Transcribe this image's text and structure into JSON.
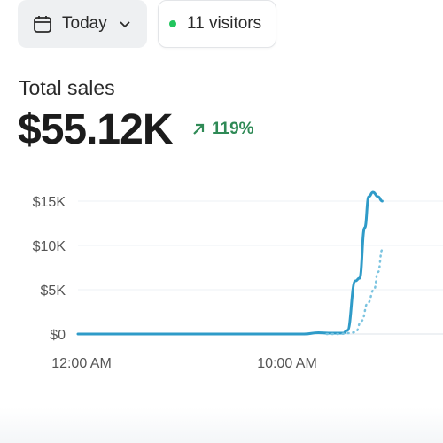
{
  "filter": {
    "label": "Today",
    "icon": "calendar-icon",
    "chevron_icon": "chevron-down-icon"
  },
  "visitors": {
    "label": "11 visitors",
    "status_color": "#22c55e"
  },
  "sales": {
    "title": "Total sales",
    "value": "$55.12K",
    "change": "119%",
    "change_icon": "arrow-up-right-icon",
    "change_color": "#2f8a56"
  },
  "chart_data": {
    "type": "line",
    "y_ticks": [
      "$0",
      "$5K",
      "$10K",
      "$15K"
    ],
    "x_ticks": [
      "12:00 AM",
      "10:00 AM"
    ],
    "ylim": [
      0,
      16000
    ],
    "series": [
      {
        "style": "solid",
        "color": "#2f9bc8",
        "points": [
          [
            0,
            0
          ],
          [
            6,
            0
          ],
          [
            11,
            0
          ],
          [
            11.7,
            150
          ],
          [
            12.2,
            100
          ],
          [
            12.9,
            100
          ],
          [
            13.1,
            400
          ],
          [
            13.5,
            6000
          ],
          [
            13.7,
            6300
          ],
          [
            13.95,
            12000
          ],
          [
            14.15,
            15500
          ],
          [
            14.35,
            16000
          ],
          [
            14.6,
            15500
          ],
          [
            14.8,
            15000
          ]
        ]
      },
      {
        "style": "dotted",
        "color": "#7cc4e0",
        "points": [
          [
            12.1,
            0
          ],
          [
            12.7,
            0
          ],
          [
            13.2,
            100
          ],
          [
            13.5,
            200
          ],
          [
            13.8,
            1500
          ],
          [
            14.1,
            3500
          ],
          [
            14.4,
            5000
          ],
          [
            14.6,
            7000
          ],
          [
            14.8,
            9500
          ]
        ]
      }
    ]
  }
}
